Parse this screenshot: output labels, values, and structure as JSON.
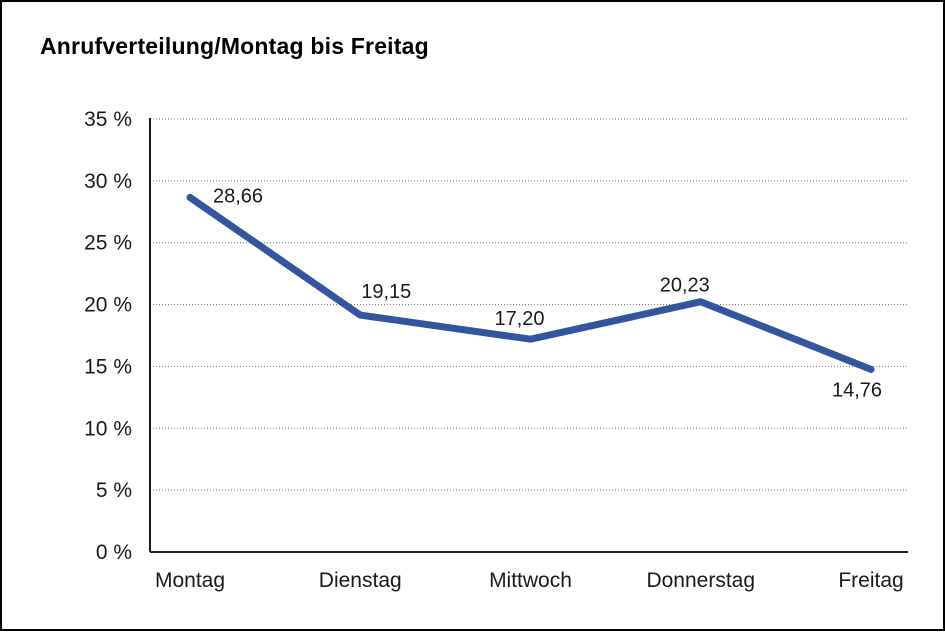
{
  "chart_data": {
    "type": "line",
    "title": "Anrufverteilung/Montag bis Freitag",
    "categories": [
      "Montag",
      "Dienstag",
      "Mittwoch",
      "Donnerstag",
      "Freitag"
    ],
    "series": [
      {
        "name": "Anrufverteilung",
        "values": [
          28.66,
          19.15,
          17.2,
          20.23,
          14.76
        ],
        "point_labels": [
          "28,66",
          "19,15",
          "17,20",
          "20,23",
          "14,76"
        ]
      }
    ],
    "xlabel": "",
    "ylabel": "",
    "ylim": [
      0,
      35
    ],
    "y_ticks": [
      0,
      5,
      10,
      15,
      20,
      25,
      30,
      35
    ],
    "y_tick_labels": [
      "0 %",
      "5 %",
      "10 %",
      "15 %",
      "20 %",
      "25 %",
      "30 %",
      "35 %"
    ],
    "grid": "horizontal-dotted",
    "legend_position": "none",
    "line_color": "#3355a0",
    "text_color": "#1a1a1a",
    "background_color": "#ffffff",
    "frame_border_color": "#000000"
  }
}
